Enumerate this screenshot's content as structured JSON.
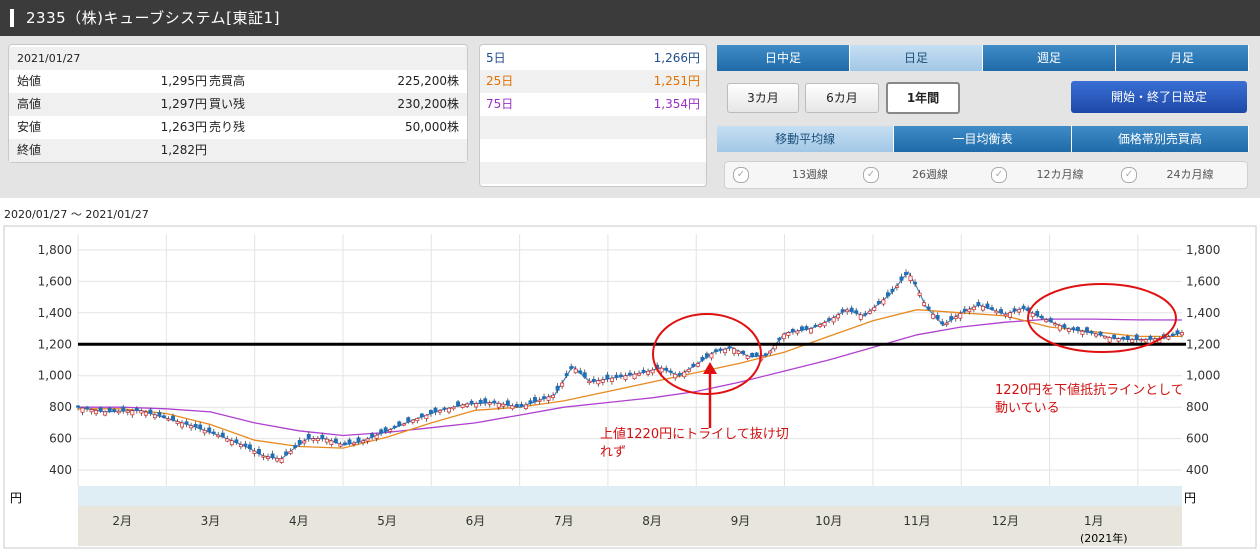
{
  "header": {
    "title": "2335（株)キューブシステム[東証1]"
  },
  "quote": {
    "date": "2021/01/27",
    "rows": [
      {
        "label": "始値",
        "value": "1,295円",
        "label2": "売買高",
        "value2": "225,200株"
      },
      {
        "label": "高値",
        "value": "1,297円",
        "label2": "買い残",
        "value2": "230,200株"
      },
      {
        "label": "安値",
        "value": "1,263円",
        "label2": "売り残",
        "value2": "50,000株"
      },
      {
        "label": "終値",
        "value": "1,282円",
        "label2": "",
        "value2": ""
      }
    ]
  },
  "ma_values": [
    {
      "label": "5日",
      "value": "1,266円",
      "color": "#1f4e8c"
    },
    {
      "label": "25日",
      "value": "1,251円",
      "color": "#e07000"
    },
    {
      "label": "75日",
      "value": "1,354円",
      "color": "#9b30c8"
    }
  ],
  "tabs_period": [
    "日中足",
    "日足",
    "週足",
    "月足"
  ],
  "tabs_period_selected": 1,
  "range_buttons": [
    "3カ月",
    "6カ月",
    "1年間"
  ],
  "range_selected": 2,
  "set_button": "開始・終了日設定",
  "tabs_indicator": [
    "移動平均線",
    "一目均衡表",
    "価格帯別売買高"
  ],
  "tabs_indicator_selected": 0,
  "ma_checks": [
    "13週線",
    "26週線",
    "12カ月線",
    "24カ月線"
  ],
  "date_range": "2020/01/27 〜 2021/01/27",
  "chart_data": {
    "type": "candlestick",
    "unit": "円",
    "ylim": [
      350,
      1850
    ],
    "yticks": [
      "400",
      "600",
      "800",
      "1,000",
      "1,200",
      "1,400",
      "1,600",
      "1,800"
    ],
    "months": [
      {
        "label": "2月",
        "pos": 0.5
      },
      {
        "label": "3月",
        "pos": 1.5
      },
      {
        "label": "4月",
        "pos": 2.5
      },
      {
        "label": "5月",
        "pos": 3.5
      },
      {
        "label": "6月",
        "pos": 4.5
      },
      {
        "label": "7月",
        "pos": 5.5
      },
      {
        "label": "8月",
        "pos": 6.5
      },
      {
        "label": "9月",
        "pos": 7.5
      },
      {
        "label": "10月",
        "pos": 8.5
      },
      {
        "label": "11月",
        "pos": 9.5
      },
      {
        "label": "12月",
        "pos": 10.5
      },
      {
        "label": "1月",
        "pos": 11.5
      }
    ],
    "year_label": "(2021年)",
    "hline": 1200,
    "price_path": [
      [
        0,
        800
      ],
      [
        0.3,
        770
      ],
      [
        0.7,
        780
      ],
      [
        1.0,
        730
      ],
      [
        1.3,
        680
      ],
      [
        1.6,
        620
      ],
      [
        1.9,
        550
      ],
      [
        2.1,
        490
      ],
      [
        2.3,
        470
      ],
      [
        2.45,
        540
      ],
      [
        2.6,
        600
      ],
      [
        2.8,
        600
      ],
      [
        3.0,
        560
      ],
      [
        3.2,
        580
      ],
      [
        3.5,
        650
      ],
      [
        3.8,
        720
      ],
      [
        4.1,
        780
      ],
      [
        4.4,
        820
      ],
      [
        4.7,
        830
      ],
      [
        5.0,
        800
      ],
      [
        5.2,
        840
      ],
      [
        5.4,
        880
      ],
      [
        5.6,
        1060
      ],
      [
        5.8,
        960
      ],
      [
        6.1,
        990
      ],
      [
        6.4,
        1020
      ],
      [
        6.6,
        1050
      ],
      [
        6.8,
        1000
      ],
      [
        7.0,
        1070
      ],
      [
        7.2,
        1150
      ],
      [
        7.4,
        1180
      ],
      [
        7.6,
        1120
      ],
      [
        7.8,
        1130
      ],
      [
        8.0,
        1270
      ],
      [
        8.3,
        1300
      ],
      [
        8.5,
        1350
      ],
      [
        8.7,
        1420
      ],
      [
        8.9,
        1380
      ],
      [
        9.2,
        1520
      ],
      [
        9.4,
        1660
      ],
      [
        9.5,
        1560
      ],
      [
        9.6,
        1440
      ],
      [
        9.8,
        1320
      ],
      [
        10.0,
        1400
      ],
      [
        10.2,
        1450
      ],
      [
        10.5,
        1390
      ],
      [
        10.7,
        1430
      ],
      [
        10.9,
        1370
      ],
      [
        11.2,
        1300
      ],
      [
        11.5,
        1270
      ],
      [
        11.7,
        1240
      ],
      [
        11.9,
        1230
      ],
      [
        12.1,
        1230
      ],
      [
        12.3,
        1240
      ],
      [
        12.5,
        1275
      ]
    ],
    "ma25": [
      [
        0,
        790
      ],
      [
        0.5,
        790
      ],
      [
        1.0,
        760
      ],
      [
        1.5,
        690
      ],
      [
        2.0,
        590
      ],
      [
        2.5,
        550
      ],
      [
        3.0,
        540
      ],
      [
        3.5,
        610
      ],
      [
        4.0,
        700
      ],
      [
        4.5,
        780
      ],
      [
        5.0,
        800
      ],
      [
        5.5,
        840
      ],
      [
        6.0,
        900
      ],
      [
        6.5,
        960
      ],
      [
        7.0,
        1020
      ],
      [
        7.5,
        1080
      ],
      [
        8.0,
        1150
      ],
      [
        8.5,
        1250
      ],
      [
        9.0,
        1350
      ],
      [
        9.5,
        1420
      ],
      [
        10.0,
        1400
      ],
      [
        10.5,
        1380
      ],
      [
        11.0,
        1310
      ],
      [
        11.5,
        1280
      ],
      [
        12.0,
        1250
      ],
      [
        12.5,
        1250
      ]
    ],
    "ma75": [
      [
        0,
        800
      ],
      [
        0.5,
        800
      ],
      [
        1.0,
        790
      ],
      [
        1.5,
        770
      ],
      [
        2.0,
        700
      ],
      [
        2.5,
        650
      ],
      [
        3.0,
        620
      ],
      [
        3.5,
        640
      ],
      [
        4.0,
        670
      ],
      [
        4.5,
        700
      ],
      [
        5.0,
        750
      ],
      [
        5.5,
        800
      ],
      [
        6.0,
        830
      ],
      [
        6.5,
        860
      ],
      [
        7.0,
        900
      ],
      [
        7.5,
        960
      ],
      [
        8.0,
        1030
      ],
      [
        8.5,
        1100
      ],
      [
        9.0,
        1180
      ],
      [
        9.5,
        1260
      ],
      [
        10.0,
        1310
      ],
      [
        10.5,
        1340
      ],
      [
        11.0,
        1360
      ],
      [
        11.5,
        1360
      ],
      [
        12.0,
        1355
      ],
      [
        12.5,
        1354
      ]
    ],
    "annotations": [
      {
        "text1": "上値1220円にトライして抜け切",
        "text2": "れず",
        "color": "#d01010"
      },
      {
        "text1": "1220円を下値抵抗ラインとして",
        "text2": "動いている",
        "color": "#d01010"
      }
    ]
  }
}
